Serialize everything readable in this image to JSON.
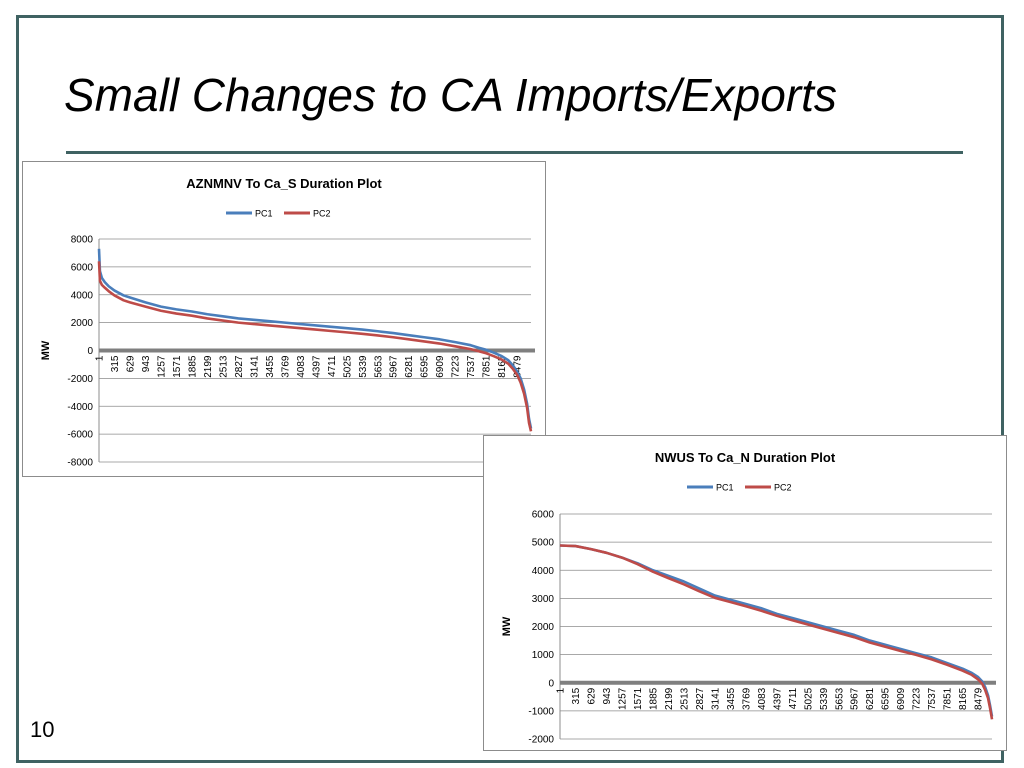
{
  "slide": {
    "title": "Small Changes to CA Imports/Exports",
    "page_number": "10",
    "accent_color": "#3f6262"
  },
  "chart_data": [
    {
      "type": "line",
      "title": "AZNMNV To Ca_S  Duration Plot",
      "ylabel": "MW",
      "xlabel": "",
      "ylim": [
        -8000,
        8000
      ],
      "yticks": [
        8000,
        6000,
        4000,
        2000,
        0,
        -2000,
        -4000,
        -6000,
        -8000
      ],
      "xlim": [
        1,
        8760
      ],
      "xticks": [
        1,
        315,
        629,
        943,
        1257,
        1571,
        1885,
        2199,
        2513,
        2827,
        3141,
        3455,
        3769,
        4083,
        4397,
        4711,
        5025,
        5339,
        5653,
        5967,
        6281,
        6595,
        6909,
        7223,
        7537,
        7851,
        8165,
        8479
      ],
      "grid": true,
      "legend_position": "top",
      "series": [
        {
          "name": "PC1",
          "color": "#4a7ebb",
          "x": [
            1,
            20,
            60,
            120,
            200,
            315,
            500,
            629,
            943,
            1257,
            1571,
            1885,
            2199,
            2513,
            2827,
            3141,
            3455,
            3769,
            4083,
            4397,
            4711,
            5025,
            5339,
            5653,
            5967,
            6281,
            6595,
            6909,
            7223,
            7537,
            7700,
            7851,
            8000,
            8165,
            8300,
            8400,
            8479,
            8550,
            8620,
            8680,
            8720,
            8760
          ],
          "values": [
            7300,
            5700,
            5200,
            4900,
            4600,
            4300,
            3950,
            3800,
            3450,
            3150,
            2950,
            2800,
            2600,
            2450,
            2300,
            2200,
            2100,
            2000,
            1900,
            1800,
            1700,
            1600,
            1500,
            1380,
            1250,
            1100,
            950,
            800,
            600,
            380,
            200,
            50,
            -150,
            -400,
            -700,
            -1100,
            -1500,
            -2000,
            -2800,
            -3800,
            -4900,
            -5600
          ]
        },
        {
          "name": "PC2",
          "color": "#be4b48",
          "x": [
            1,
            20,
            60,
            120,
            200,
            315,
            500,
            629,
            943,
            1257,
            1571,
            1885,
            2199,
            2513,
            2827,
            3141,
            3455,
            3769,
            4083,
            4397,
            4711,
            5025,
            5339,
            5653,
            5967,
            6281,
            6595,
            6909,
            7223,
            7537,
            7700,
            7851,
            8000,
            8165,
            8300,
            8400,
            8479,
            8550,
            8620,
            8680,
            8720,
            8760
          ],
          "values": [
            6400,
            5000,
            4700,
            4500,
            4250,
            3950,
            3600,
            3450,
            3150,
            2850,
            2650,
            2500,
            2300,
            2150,
            2000,
            1900,
            1800,
            1700,
            1600,
            1500,
            1400,
            1300,
            1200,
            1080,
            950,
            800,
            650,
            500,
            300,
            100,
            -50,
            -200,
            -400,
            -650,
            -950,
            -1350,
            -1750,
            -2300,
            -3100,
            -4100,
            -5200,
            -5800
          ]
        }
      ]
    },
    {
      "type": "line",
      "title": "NWUS To Ca_N  Duration Plot",
      "ylabel": "MW",
      "xlabel": "",
      "ylim": [
        -2000,
        6000
      ],
      "yticks": [
        6000,
        5000,
        4000,
        3000,
        2000,
        1000,
        0,
        -1000,
        -2000
      ],
      "xlim": [
        1,
        8760
      ],
      "xticks": [
        1,
        315,
        629,
        943,
        1257,
        1571,
        1885,
        2199,
        2513,
        2827,
        3141,
        3455,
        3769,
        4083,
        4397,
        4711,
        5025,
        5339,
        5653,
        5967,
        6281,
        6595,
        6909,
        7223,
        7537,
        7851,
        8165,
        8479
      ],
      "grid": true,
      "legend_position": "top",
      "series": [
        {
          "name": "PC1",
          "color": "#4a7ebb",
          "x": [
            1,
            315,
            629,
            943,
            1257,
            1571,
            1885,
            2199,
            2513,
            2827,
            3141,
            3455,
            3769,
            4083,
            4397,
            4711,
            5025,
            5339,
            5653,
            5967,
            6281,
            6595,
            6909,
            7223,
            7537,
            7851,
            8165,
            8350,
            8479,
            8560,
            8620,
            8680,
            8720,
            8760
          ],
          "values": [
            4880,
            4860,
            4750,
            4620,
            4450,
            4250,
            4000,
            3800,
            3600,
            3350,
            3100,
            2950,
            2800,
            2650,
            2450,
            2300,
            2150,
            2000,
            1850,
            1700,
            1500,
            1350,
            1200,
            1050,
            900,
            700,
            500,
            350,
            200,
            50,
            -150,
            -450,
            -800,
            -1200
          ]
        },
        {
          "name": "PC2",
          "color": "#be4b48",
          "x": [
            1,
            315,
            629,
            943,
            1257,
            1571,
            1885,
            2199,
            2513,
            2827,
            3141,
            3455,
            3769,
            4083,
            4397,
            4711,
            5025,
            5339,
            5653,
            5967,
            6281,
            6595,
            6909,
            7223,
            7537,
            7851,
            8165,
            8350,
            8479,
            8560,
            8620,
            8680,
            8720,
            8760
          ],
          "values": [
            4880,
            4860,
            4750,
            4620,
            4450,
            4220,
            3950,
            3720,
            3500,
            3250,
            3020,
            2870,
            2720,
            2560,
            2380,
            2220,
            2070,
            1920,
            1770,
            1620,
            1430,
            1280,
            1130,
            990,
            830,
            640,
            430,
            280,
            120,
            -30,
            -250,
            -550,
            -900,
            -1300
          ]
        }
      ]
    }
  ]
}
